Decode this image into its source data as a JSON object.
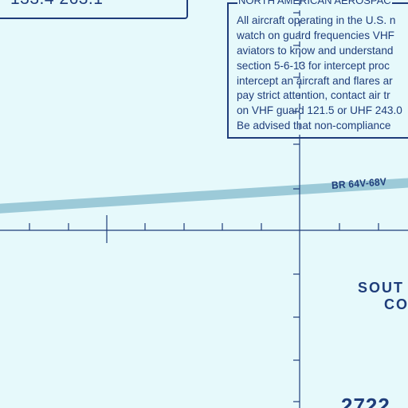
{
  "chart_colors": {
    "background": "#e6f9fb",
    "ink": "#1f3d7a",
    "route": "#9ccad8"
  },
  "frequencies": {
    "text": "133.4  263.1"
  },
  "notice": {
    "title": "NORTH AMERICAN AEROSPAC",
    "lines": [
      "All aircraft operating in the U.S. n",
      "watch on guard frequencies VHF",
      "aviators to know and understand",
      "section 5-6-13 for intercept proc",
      "intercept an aircraft and flares ar",
      "pay strict attention, contact air tr",
      "on VHF guard 121.5 or UHF 243.0",
      "Be advised that non-compliance"
    ]
  },
  "route": {
    "label": "BR 64V-68V"
  },
  "area": {
    "line1": "SOUT",
    "line2": "CO"
  },
  "bottom": {
    "figure": "2722"
  }
}
